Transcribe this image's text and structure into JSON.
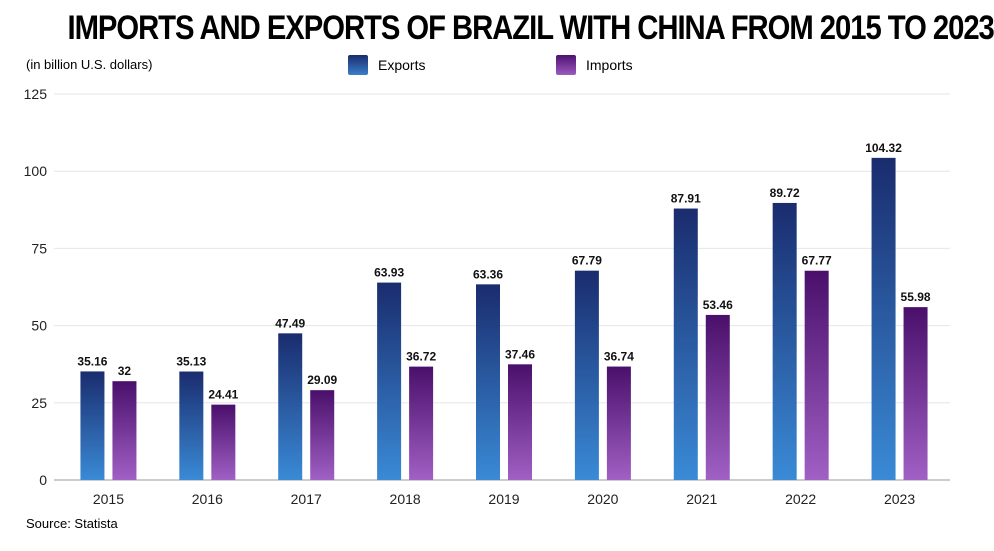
{
  "title": "IMPORTS AND EXPORTS OF BRAZIL WITH CHINA FROM 2015 TO 2023",
  "subtitle": "(in billion U.S. dollars)",
  "source": "Source: Statista",
  "legend": {
    "exports": "Exports",
    "imports": "Imports"
  },
  "chart_data": {
    "type": "bar",
    "title": "IMPORTS AND EXPORTS OF BRAZIL WITH CHINA FROM 2015 TO 2023",
    "subtitle": "(in billion U.S. dollars)",
    "xlabel": "",
    "ylabel": "",
    "ylim": [
      0,
      125
    ],
    "yticks": [
      0,
      25,
      50,
      75,
      100,
      125
    ],
    "grid": true,
    "legend_position": "top",
    "categories": [
      "2015",
      "2016",
      "2017",
      "2018",
      "2019",
      "2020",
      "2021",
      "2022",
      "2023"
    ],
    "series": [
      {
        "name": "Exports",
        "values": [
          35.16,
          35.13,
          47.49,
          63.93,
          63.36,
          67.79,
          87.91,
          89.72,
          104.32
        ],
        "color_top": "#1a2c6e",
        "color_bottom": "#3a8ad6"
      },
      {
        "name": "Imports",
        "values": [
          32,
          24.41,
          29.09,
          36.72,
          37.46,
          36.74,
          53.46,
          67.77,
          55.98
        ],
        "color_top": "#4a0f6b",
        "color_bottom": "#a060c4"
      }
    ],
    "data_labels": [
      [
        "35.16",
        "35.13",
        "47.49",
        "63.93",
        "63.36",
        "67.79",
        "87.91",
        "89.72",
        "104.32"
      ],
      [
        "32",
        "24.41",
        "29.09",
        "36.72",
        "37.46",
        "36.74",
        "53.46",
        "67.77",
        "55.98"
      ]
    ]
  }
}
